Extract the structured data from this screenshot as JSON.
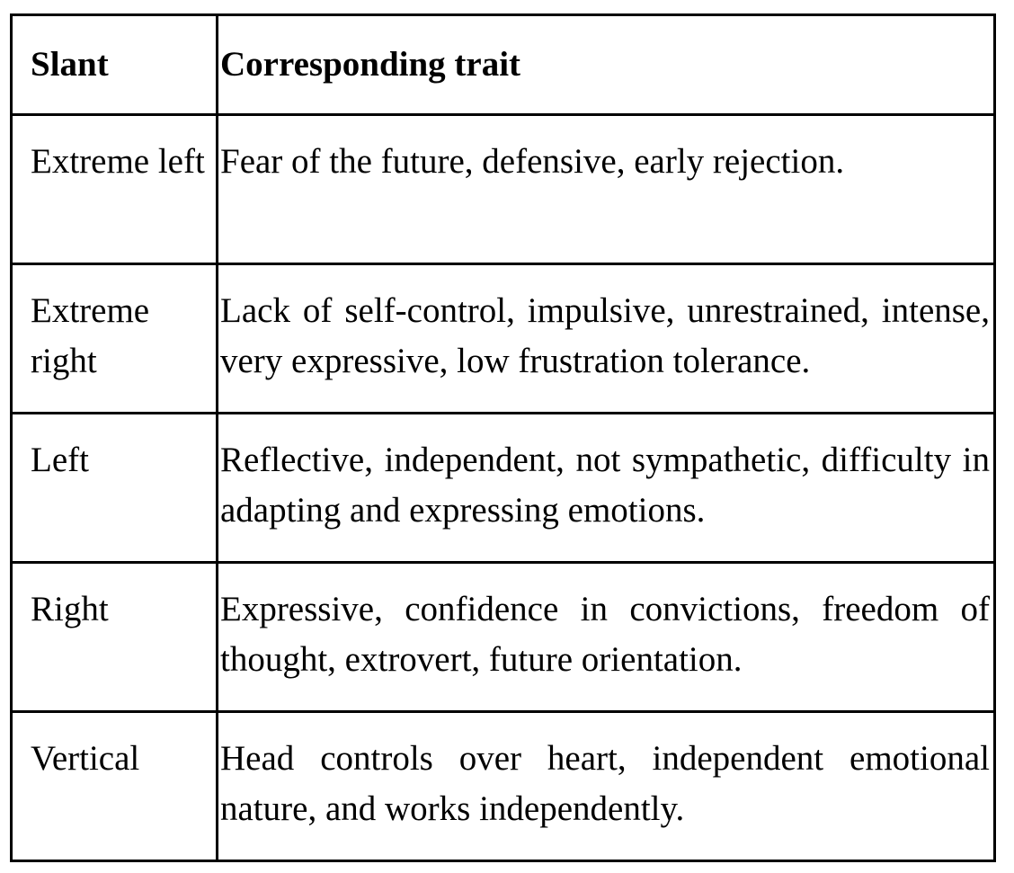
{
  "table": {
    "headers": {
      "slant": "Slant",
      "trait": "Corresponding trait"
    },
    "rows": [
      {
        "slant": "Extreme left",
        "trait": "Fear of the future, defensive, early rejection."
      },
      {
        "slant": "Extreme right",
        "trait": "Lack of self-control, impulsive, unrestrained, intense, very expressive, low frustration tolerance."
      },
      {
        "slant": "Left",
        "trait": "Reflective, independent, not sympathetic, difficulty in adapting and expressing emotions."
      },
      {
        "slant": "Right",
        "trait": "Expressive, confidence in convictions, freedom of thought, extrovert, future orientation."
      },
      {
        "slant": "Vertical",
        "trait": "Head controls over heart, independent emotional nature, and works independently."
      }
    ]
  }
}
